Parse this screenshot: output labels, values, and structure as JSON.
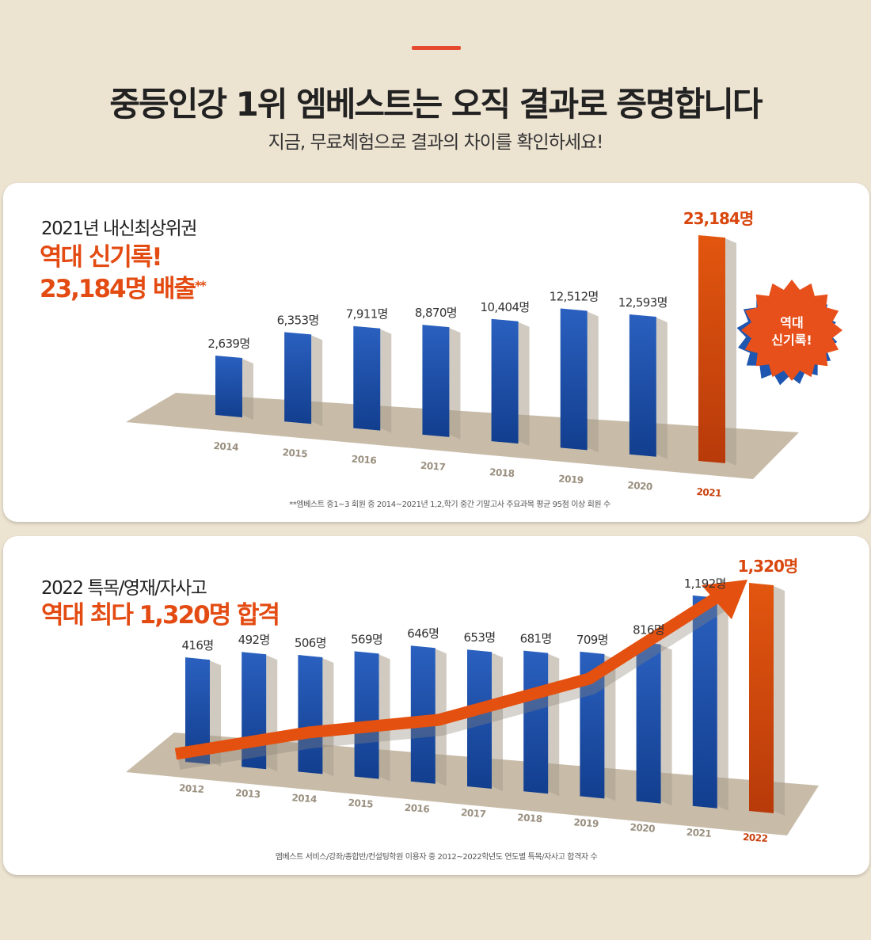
{
  "header": {
    "title": "중등인강 1위 엠베스트는 오직 결과로 증명합니다",
    "subtitle": "지금, 무료체험으로 결과의 차이를 확인하세요!"
  },
  "colors": {
    "bar": "#1a4fa8",
    "highlight": "#d9470f",
    "floor": "#c8bca9",
    "background": "#ede3d1"
  },
  "chart_data": [
    {
      "type": "bar",
      "title": "2021년 내신최상위권",
      "highlight_lines": [
        "역대 신기록!",
        "23,184명 배출"
      ],
      "highlight_mark": "**",
      "categories": [
        "2014",
        "2015",
        "2016",
        "2017",
        "2018",
        "2019",
        "2020",
        "2021"
      ],
      "values": [
        2639,
        6353,
        7911,
        8870,
        10404,
        12512,
        12593,
        23184
      ],
      "value_labels": [
        "2,639명",
        "6,353명",
        "7,911명",
        "8,870명",
        "10,404명",
        "12,512명",
        "12,593명",
        "23,184명"
      ],
      "highlight_index": 7,
      "badge": [
        "역대",
        "신기록!"
      ],
      "footnote": "**엠베스트 중1~3 회원 중 2014~2021년 1,2,학기 중간 기말고사 주요과목 평균 95점 이상 회원 수"
    },
    {
      "type": "bar",
      "title": "2022 특목/영재/자사고",
      "highlight_lines": [
        "역대 최다 1,320명 합격"
      ],
      "categories": [
        "2012",
        "2013",
        "2014",
        "2015",
        "2016",
        "2017",
        "2018",
        "2019",
        "2020",
        "2021",
        "2022"
      ],
      "values": [
        416,
        492,
        506,
        569,
        646,
        653,
        681,
        709,
        816,
        1192,
        1320
      ],
      "value_labels": [
        "416명",
        "492명",
        "506명",
        "569명",
        "646명",
        "653명",
        "681명",
        "709명",
        "816명",
        "1,192명",
        "1,320명"
      ],
      "highlight_index": 10,
      "trend_arrow": true,
      "footnote": "엠베스트 서비스/강좌/종합반/컨설팅학원 이용자 중 2012~2022학년도 연도별 특목/자사고 합격자 수"
    }
  ]
}
